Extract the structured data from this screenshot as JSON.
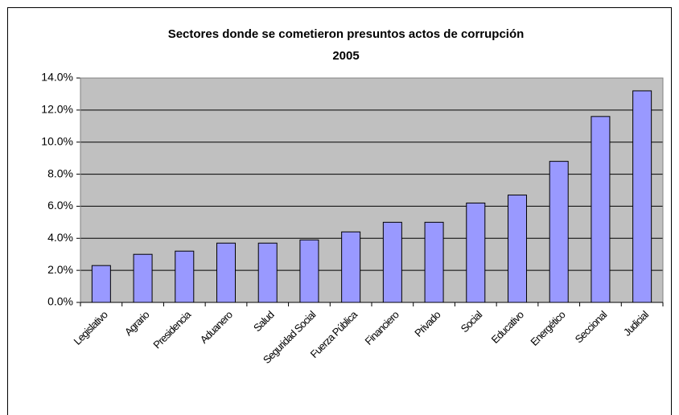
{
  "chart_data": {
    "type": "bar",
    "title": "Sectores donde se cometieron presuntos actos de corrupción",
    "subtitle": "2005",
    "categories": [
      "Legislativo",
      "Agrario",
      "Presidencia",
      "Aduanero",
      "Salud",
      "Seguridad Social",
      "Fuerza Pública",
      "Financiero",
      "Privado",
      "Social",
      "Educativo",
      "Energético",
      "Seccional",
      "Judicial"
    ],
    "values": [
      2.3,
      3.0,
      3.2,
      3.7,
      3.7,
      3.9,
      4.4,
      5.0,
      5.0,
      6.2,
      6.7,
      8.8,
      11.6,
      13.2
    ],
    "color": "#9999ff",
    "ylim": [
      0,
      14
    ],
    "yticks": [
      {
        "value": 0,
        "label": "0.0%"
      },
      {
        "value": 2,
        "label": "2.0%"
      },
      {
        "value": 4,
        "label": "4.0%"
      },
      {
        "value": 6,
        "label": "6.0%"
      },
      {
        "value": 8,
        "label": "8.0%"
      },
      {
        "value": 10,
        "label": "10.0%"
      },
      {
        "value": 12,
        "label": "12.0%"
      },
      {
        "value": 14,
        "label": "14.0%"
      }
    ],
    "grid": true
  }
}
